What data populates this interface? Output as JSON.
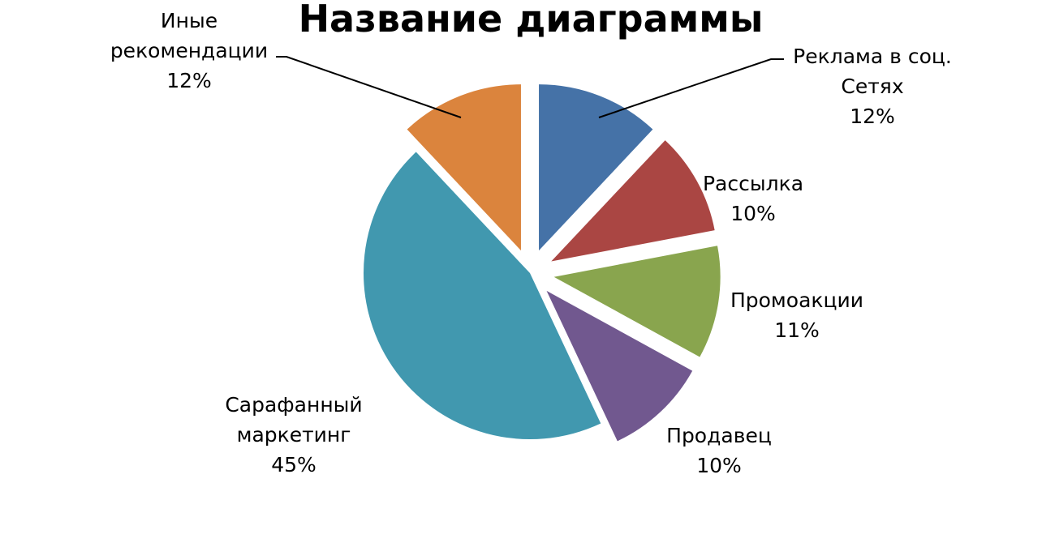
{
  "chart_data": {
    "type": "pie",
    "title": "Название диаграммы",
    "exploded": true,
    "start_angle_deg": 0,
    "direction": "clockwise",
    "slices": [
      {
        "label_lines": [
          "Реклама в соц.",
          "Сетях"
        ],
        "value": 12,
        "percent_label": "12%",
        "color": "#4572A7"
      },
      {
        "label_lines": [
          "Рассылка"
        ],
        "value": 10,
        "percent_label": "10%",
        "color": "#AA4643"
      },
      {
        "label_lines": [
          "Промоакции"
        ],
        "value": 11,
        "percent_label": "11%",
        "color": "#89A54E"
      },
      {
        "label_lines": [
          "Продавец"
        ],
        "value": 10,
        "percent_label": "10%",
        "color": "#71588F"
      },
      {
        "label_lines": [
          "Сарафанный",
          "маркетинг"
        ],
        "value": 45,
        "percent_label": "45%",
        "color": "#4198AF"
      },
      {
        "label_lines": [
          "Иные",
          "рекомендации"
        ],
        "value": 12,
        "percent_label": "12%",
        "color": "#DB843D"
      }
    ]
  }
}
